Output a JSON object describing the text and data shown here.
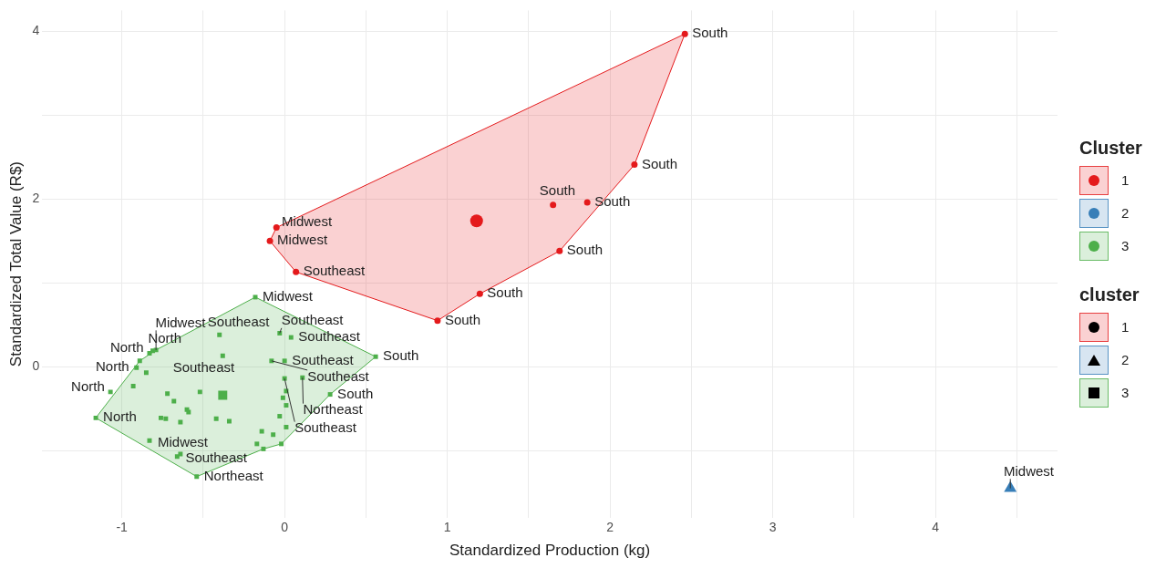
{
  "chart_data": {
    "type": "scatter",
    "xlabel": "Standardized Production (kg)",
    "ylabel": "Standardized Total Value (R$)",
    "legend_title": [
      "Cluster",
      "cluster"
    ],
    "legend": "right",
    "grid": true,
    "xlim": [
      -1.49,
      4.75
    ],
    "ylim": [
      -1.8,
      4.25
    ],
    "xticks": [
      -1,
      {
        "value": -0.5,
        "label": null
      },
      0,
      {
        "value": 0.5,
        "label": null
      },
      1,
      {
        "value": 1.5,
        "label": null
      },
      2,
      {
        "value": 2.5,
        "label": null
      },
      3,
      {
        "value": 3.5,
        "label": null
      },
      4,
      {
        "value": 4.5,
        "label": null
      }
    ],
    "yticks": [
      {
        "value": -1,
        "label": null
      },
      0,
      {
        "value": 1,
        "label": null
      },
      2,
      {
        "value": 3,
        "label": null
      },
      4
    ],
    "series": [
      {
        "type": "area",
        "color": "#e41a1c",
        "x": [
          2.46,
          2.15,
          1.69,
          1.2,
          0.94,
          0.07,
          -0.09,
          -0.05
        ],
        "values": [
          3.97,
          2.41,
          1.38,
          0.87,
          0.55,
          1.13,
          1.5,
          1.66
        ]
      },
      {
        "type": "area",
        "color": "#4daf4a",
        "x": [
          -0.18,
          0.56,
          0.28,
          -0.02,
          -0.13,
          -0.54,
          -1.16,
          -0.89,
          -0.79
        ],
        "values": [
          0.83,
          0.12,
          -0.33,
          -0.92,
          -0.98,
          -1.31,
          -0.61,
          0.07,
          0.2
        ]
      },
      {
        "type": "scatter",
        "name": "1",
        "color": "#e41a1c",
        "marker": "circle",
        "x": [
          2.46,
          2.15,
          1.86,
          1.65,
          1.69,
          1.2,
          0.94,
          0.07,
          -0.09,
          -0.05
        ],
        "values": [
          3.97,
          2.41,
          1.96,
          1.93,
          1.38,
          0.87,
          0.55,
          1.13,
          1.5,
          1.66
        ],
        "value_labels": [
          "South",
          "South",
          "South",
          "South",
          "South",
          "South",
          "South",
          "Southeast",
          "Midwest",
          "Midwest"
        ]
      },
      {
        "type": "scatter",
        "name": "2",
        "color": "#377eb8",
        "marker": "triangle",
        "x": [
          4.46
        ],
        "values": [
          -1.45
        ],
        "value_labels": [
          "Midwest"
        ]
      },
      {
        "type": "scatter",
        "name": "3",
        "color": "#4daf4a",
        "marker": "square",
        "x": [
          -0.18,
          -0.4,
          -0.03,
          0.04,
          -0.81,
          -0.38,
          -0.83,
          -0.79,
          0,
          0.56,
          -0.91,
          -0.08,
          0.11,
          -1.07,
          0,
          0.28,
          -1.16,
          -0.66,
          -0.64,
          -0.54,
          -0.89,
          -0.85,
          -0.93,
          -0.72,
          -0.68,
          -0.6,
          -0.59,
          -0.76,
          -0.73,
          -0.64,
          -0.83,
          -0.52,
          -0.42,
          -0.34,
          0.01,
          -0.01,
          0.01,
          -0.03,
          0.01,
          -0.14,
          -0.07,
          -0.17,
          -0.13,
          -0.02
        ],
        "values": [
          0.83,
          0.38,
          0.4,
          0.35,
          0.19,
          0.13,
          0.16,
          0.2,
          0.07,
          0.12,
          -0.01,
          0.07,
          -0.13,
          -0.3,
          -0.14,
          -0.33,
          -0.61,
          -1.07,
          -1.04,
          -1.31,
          0.07,
          -0.07,
          -0.23,
          -0.32,
          -0.41,
          -0.51,
          -0.54,
          -0.61,
          -0.62,
          -0.66,
          -0.88,
          -0.3,
          -0.62,
          -0.65,
          -0.29,
          -0.37,
          -0.46,
          -0.59,
          -0.72,
          -0.77,
          -0.81,
          -0.92,
          -0.98,
          -0.92
        ],
        "value_labels": [
          "Midwest",
          "Southeast",
          "Southeast",
          "Southeast",
          "North",
          "Southeast",
          "North",
          "Midwest",
          "Southeast",
          "South",
          "North",
          "Southeast",
          "Northeast",
          "North",
          "Southeast",
          "South",
          "North",
          "Midwest",
          "Southeast",
          "Northeast",
          null,
          null,
          null,
          null,
          null,
          null,
          null,
          null,
          null,
          null,
          null,
          null,
          null,
          null,
          null,
          null,
          null,
          null,
          null,
          null,
          null,
          null,
          null,
          null
        ]
      },
      {
        "type": "scatter",
        "color": "#e41a1c",
        "marker": "circle",
        "x": [
          1.18
        ],
        "values": [
          1.74
        ]
      },
      {
        "type": "scatter",
        "color": "#4daf4a",
        "marker": "square",
        "x": [
          -0.38
        ],
        "values": [
          -0.34
        ]
      }
    ]
  }
}
